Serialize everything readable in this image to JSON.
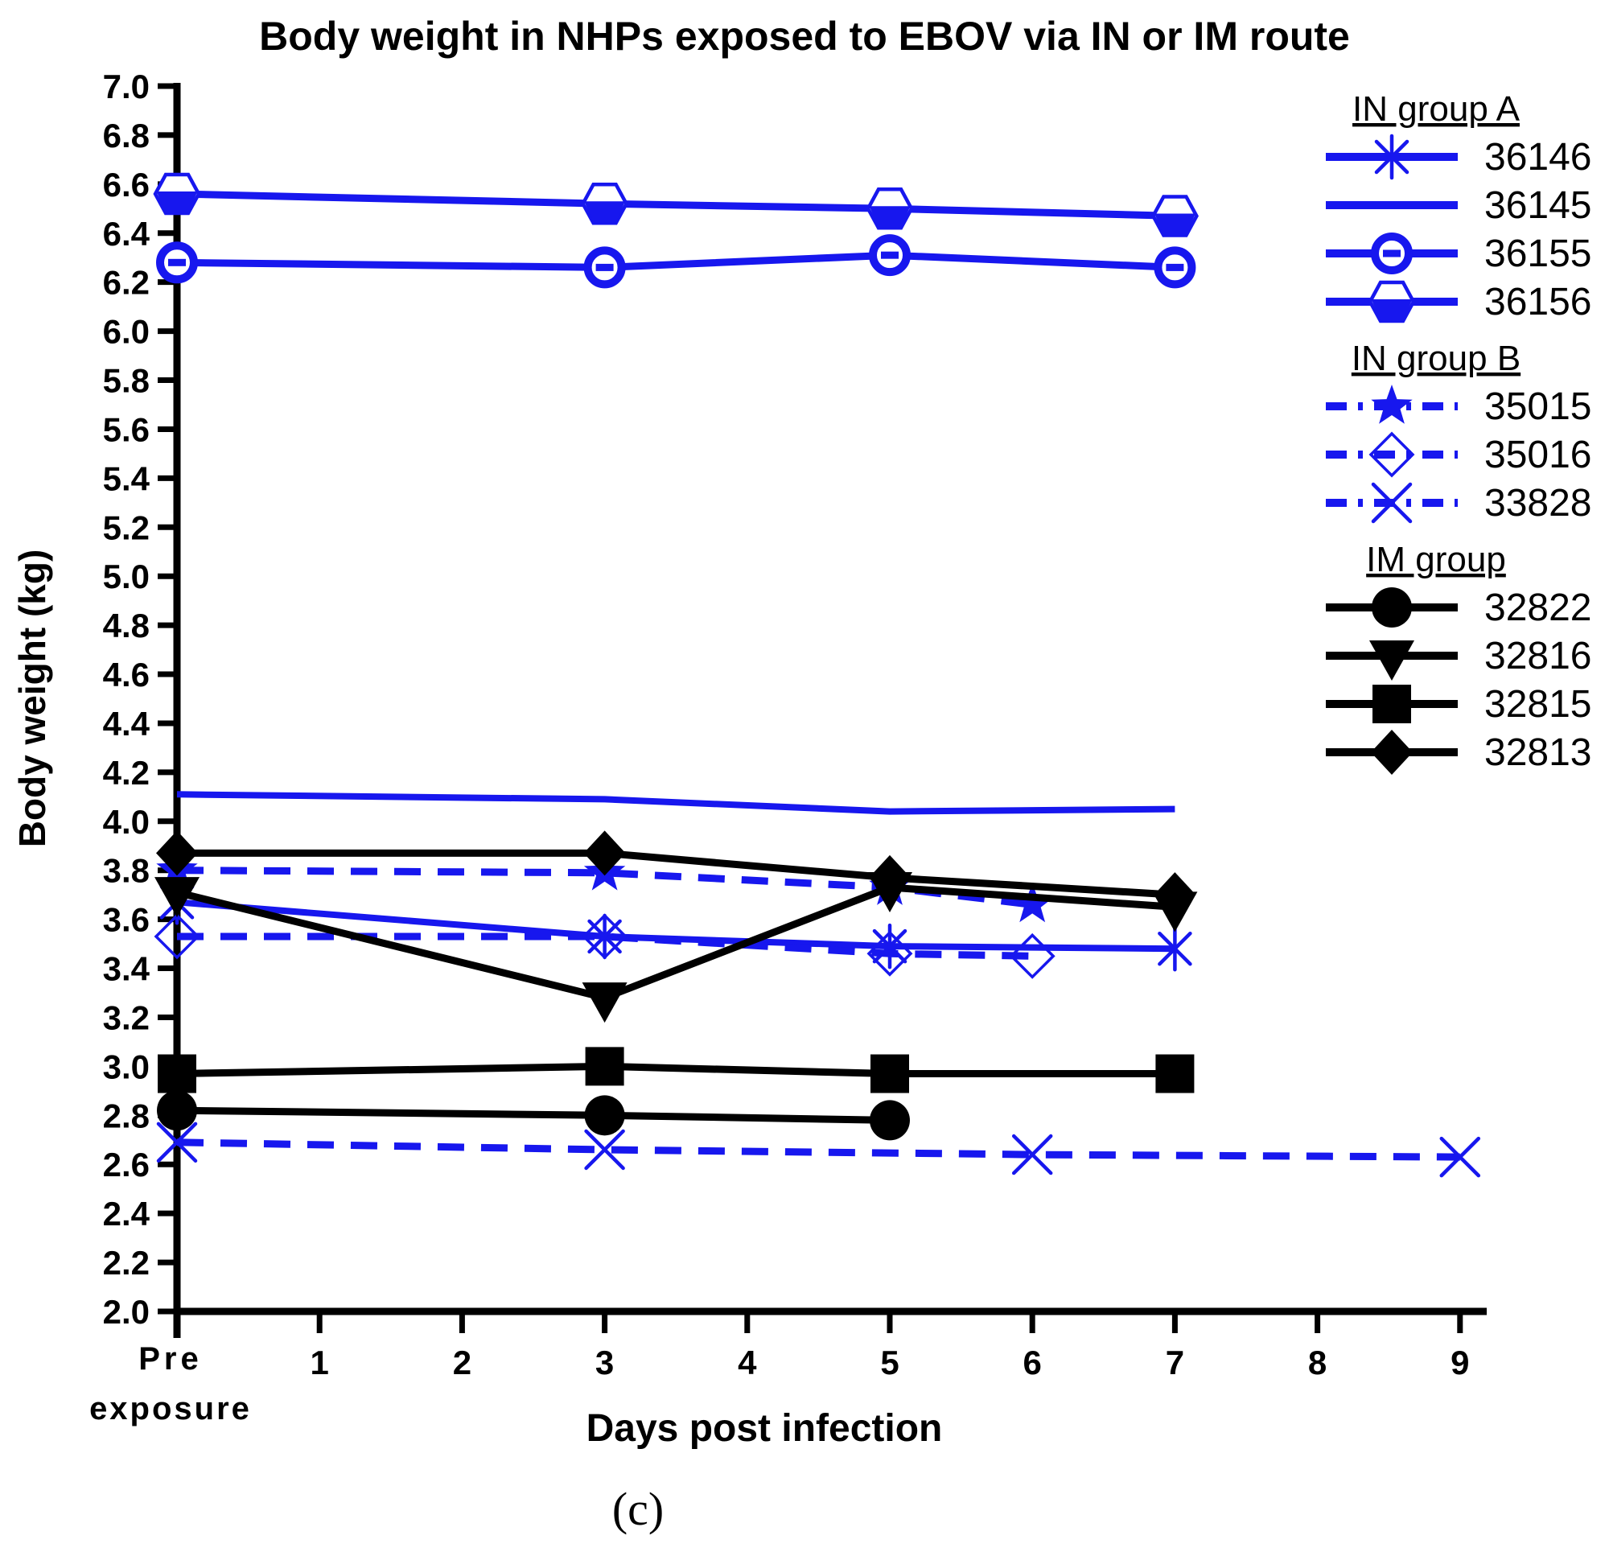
{
  "title": "Body weight in NHPs exposed to EBOV via IN or IM route",
  "caption": "(c)",
  "chart_data": {
    "type": "line",
    "title": "Body weight in NHPs exposed to EBOV via IN or IM route",
    "xlabel": "Days post infection",
    "ylabel": "Body weight (kg)",
    "x_axis": {
      "pre_label_line1": "Pre",
      "pre_label_line2": "exposure",
      "day_ticks": [
        1,
        2,
        3,
        4,
        5,
        6,
        7,
        8,
        9
      ]
    },
    "y_axis": {
      "min": 2.0,
      "max": 7.0,
      "step": 0.2,
      "grid": false
    },
    "legend_position": "right",
    "colors": {
      "in_blue": "#1717ee",
      "im_black": "#000000"
    },
    "groups": [
      {
        "name": "IN group  A",
        "style": "solid",
        "color": "#1717ee",
        "series": [
          {
            "name": "36146",
            "marker": "asterisk",
            "points": [
              [
                0,
                3.67
              ],
              [
                3,
                3.53
              ],
              [
                5,
                3.49
              ],
              [
                7,
                3.48
              ]
            ]
          },
          {
            "name": "36145",
            "marker": "none",
            "points": [
              [
                0,
                4.11
              ],
              [
                3,
                4.09
              ],
              [
                5,
                4.04
              ],
              [
                7,
                4.05
              ]
            ]
          },
          {
            "name": "36155",
            "marker": "circle-bar",
            "points": [
              [
                0,
                6.28
              ],
              [
                3,
                6.26
              ],
              [
                5,
                6.31
              ],
              [
                7,
                6.26
              ]
            ]
          },
          {
            "name": "36156",
            "marker": "hexagon-half",
            "points": [
              [
                0,
                6.56
              ],
              [
                3,
                6.52
              ],
              [
                5,
                6.5
              ],
              [
                7,
                6.47
              ]
            ]
          }
        ]
      },
      {
        "name": "IN group  B",
        "style": "dashed",
        "color": "#1717ee",
        "series": [
          {
            "name": "35015",
            "marker": "star",
            "points": [
              [
                0,
                3.8
              ],
              [
                3,
                3.79
              ],
              [
                5,
                3.73
              ],
              [
                6,
                3.66
              ]
            ]
          },
          {
            "name": "35016",
            "marker": "diamond-open",
            "points": [
              [
                0,
                3.53
              ],
              [
                3,
                3.53
              ],
              [
                5,
                3.46
              ],
              [
                6,
                3.45
              ]
            ]
          },
          {
            "name": "33828",
            "marker": "x",
            "points": [
              [
                0,
                2.69
              ],
              [
                3,
                2.66
              ],
              [
                6,
                2.64
              ],
              [
                9,
                2.63
              ]
            ]
          }
        ]
      },
      {
        "name": "IM group",
        "style": "solid",
        "color": "#000000",
        "series": [
          {
            "name": "32822",
            "marker": "circle-filled",
            "points": [
              [
                0,
                2.82
              ],
              [
                3,
                2.8
              ],
              [
                5,
                2.78
              ]
            ]
          },
          {
            "name": "32816",
            "marker": "triangle-down",
            "points": [
              [
                0,
                3.71
              ],
              [
                3,
                3.28
              ],
              [
                5,
                3.73
              ],
              [
                7,
                3.65
              ]
            ]
          },
          {
            "name": "32815",
            "marker": "square-filled",
            "points": [
              [
                0,
                2.97
              ],
              [
                3,
                3.0
              ],
              [
                5,
                2.97
              ],
              [
                7,
                2.97
              ]
            ]
          },
          {
            "name": "32813",
            "marker": "diamond-filled",
            "points": [
              [
                0,
                3.87
              ],
              [
                3,
                3.87
              ],
              [
                5,
                3.77
              ],
              [
                7,
                3.7
              ]
            ]
          }
        ]
      }
    ]
  }
}
